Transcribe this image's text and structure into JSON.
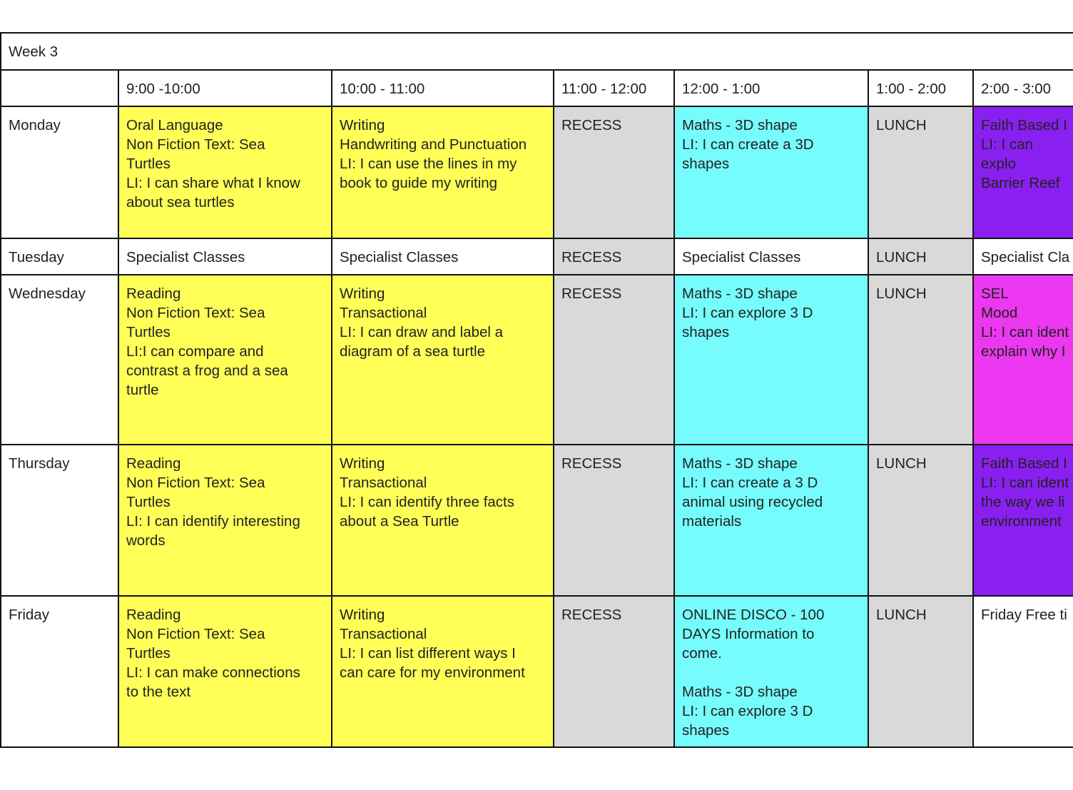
{
  "week_title": "Week 3",
  "headers": [
    "",
    "9:00 -10:00",
    "10:00 - 11:00",
    "11:00 - 12:00",
    "12:00 - 1:00",
    "1:00 - 2:00",
    "2:00 - 3:00"
  ],
  "colors": {
    "literacy": "#ffff58",
    "maths": "#76fcfd",
    "break": "#d9d9d9",
    "faith": "#8a20f0",
    "sel": "#ec38f0"
  },
  "rows": [
    {
      "day": "Monday",
      "cells": [
        "Oral Language\nNon Fiction Text: Sea\nTurtles\nLI: I can share what I know\nabout sea turtles",
        "Writing\nHandwriting and Punctuation\nLI: I can use the lines in my\nbook to guide my writing",
        "RECESS",
        "Maths - 3D shape\nLI: I can create a 3D\nshapes",
        "LUNCH",
        "Faith Based I\nLI: I can explo\nBarrier Reef"
      ]
    },
    {
      "day": "Tuesday",
      "cells": [
        "Specialist Classes",
        "Specialist Classes",
        "RECESS",
        "Specialist Classes",
        "LUNCH",
        "Specialist Cla"
      ]
    },
    {
      "day": "Wednesday",
      "cells": [
        "Reading\nNon Fiction Text: Sea\nTurtles\nLI:I can compare and\ncontrast a frog and a sea\nturtle",
        "Writing\nTransactional\nLI: I can draw and label a\ndiagram of a sea turtle",
        "RECESS",
        "Maths - 3D shape\nLI:  I can explore 3 D\nshapes",
        "LUNCH",
        "SEL\nMood\nLI: I can ident\nexplain why I"
      ]
    },
    {
      "day": "Thursday",
      "cells": [
        "Reading\nNon Fiction Text: Sea\nTurtles\nLI: I can identify interesting\nwords",
        "Writing\nTransactional\nLI:  I can identify three facts\nabout a Sea Turtle",
        "RECESS",
        "Maths - 3D shape\nLI: I can create a 3 D\nanimal using recycled\nmaterials",
        "LUNCH",
        "Faith Based I\nLI: I can ident\nthe way we li\nenvironment"
      ]
    },
    {
      "day": "Friday",
      "cells": [
        "Reading\nNon Fiction Text: Sea\nTurtles\nLI: I can make connections\nto the text",
        "Writing\nTransactional\nLI: I can list different ways I\ncan care for my environment",
        "RECESS",
        "ONLINE DISCO - 100\nDAYS Information to\ncome.\n\nMaths - 3D shape\nLI:  I can explore 3 D\nshapes",
        "LUNCH",
        "Friday Free ti"
      ]
    }
  ]
}
